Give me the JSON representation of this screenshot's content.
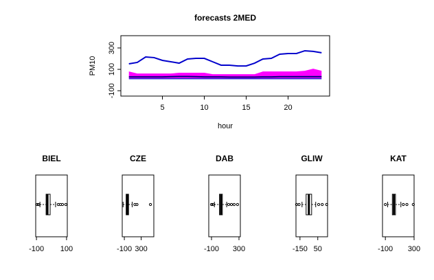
{
  "chart_data": [
    {
      "type": "line",
      "title": "forecasts  2MED",
      "x_label": "hour",
      "y_label": "PM10",
      "x": [
        1,
        2,
        3,
        4,
        5,
        6,
        7,
        8,
        9,
        10,
        11,
        12,
        13,
        14,
        15,
        16,
        17,
        18,
        19,
        20,
        21,
        22,
        23,
        24
      ],
      "xlim": [
        0.04,
        24.96
      ],
      "xticks": [
        5,
        10,
        15,
        20
      ],
      "ylim": [
        -150,
        415
      ],
      "yticks": [
        -100,
        100,
        300
      ],
      "series": [
        {
          "color": "#0000cc",
          "values": [
            152,
            165,
            216,
            210,
            184,
            171,
            158,
            197,
            203,
            203,
            171,
            139,
            139,
            132,
            132,
            158,
            197,
            203,
            242,
            248,
            248,
            274,
            268,
            255
          ]
        },
        {
          "color": "#ff00ff",
          "fill": true,
          "values": [
            80,
            61,
            61,
            61,
            61,
            61,
            68,
            68,
            68,
            68,
            55,
            55,
            55,
            55,
            55,
            55,
            80,
            80,
            80,
            80,
            80,
            87,
            106,
            87
          ]
        },
        {
          "color": "#0000cc",
          "fill": true,
          "values": [
            16,
            16,
            16,
            16,
            16,
            16,
            16,
            16,
            16,
            16,
            16,
            16,
            16,
            16,
            16,
            16,
            16,
            16,
            16,
            16,
            16,
            16,
            16,
            16
          ]
        },
        {
          "color": "#000080",
          "values": [
            29,
            29,
            29,
            29,
            29,
            31,
            33,
            33,
            31,
            29,
            29,
            29,
            27,
            27,
            27,
            27,
            29,
            29,
            31,
            31,
            31,
            31,
            31,
            31
          ]
        }
      ]
    },
    {
      "type": "box",
      "title": "BIEL",
      "xlim": [
        -105,
        105
      ],
      "xticks": [
        -100,
        100
      ],
      "whisker_low": -77,
      "q1": -36,
      "median": -27,
      "q3": -9,
      "whisker_high": 27,
      "outliers": [
        -95,
        -86,
        45,
        59,
        73,
        95
      ]
    },
    {
      "type": "box",
      "title": "CZE",
      "xlim": [
        -150,
        600
      ],
      "xticks": [
        -100,
        300
      ],
      "whisker_low": -130,
      "q1": -57,
      "median": -29,
      "q3": 0,
      "whisker_high": 86,
      "outliers": [
        150,
        200,
        520
      ]
    },
    {
      "type": "box",
      "title": "DAB",
      "xlim": [
        -140,
        320
      ],
      "xticks": [
        -100,
        300
      ],
      "whisker_low": -58,
      "q1": 16,
      "median": 37,
      "q3": 58,
      "whisker_high": 121,
      "outliers": [
        -100,
        -80,
        150,
        190,
        230,
        279
      ]
    },
    {
      "type": "box",
      "title": "GLIW",
      "xlim": [
        -195,
        160
      ],
      "xticks": [
        -150,
        50
      ],
      "whisker_low": -127,
      "q1": -81,
      "median": -50,
      "q3": -19,
      "whisker_high": 27,
      "outliers": [
        -188,
        -160,
        60,
        100,
        150
      ]
    },
    {
      "type": "box",
      "title": "KAT",
      "xlim": [
        -140,
        300
      ],
      "xticks": [
        -100,
        300
      ],
      "whisker_low": -68,
      "q1": -3,
      "median": 19,
      "q3": 41,
      "whisker_high": 116,
      "outliers": [
        -100,
        150,
        200,
        289
      ]
    }
  ]
}
